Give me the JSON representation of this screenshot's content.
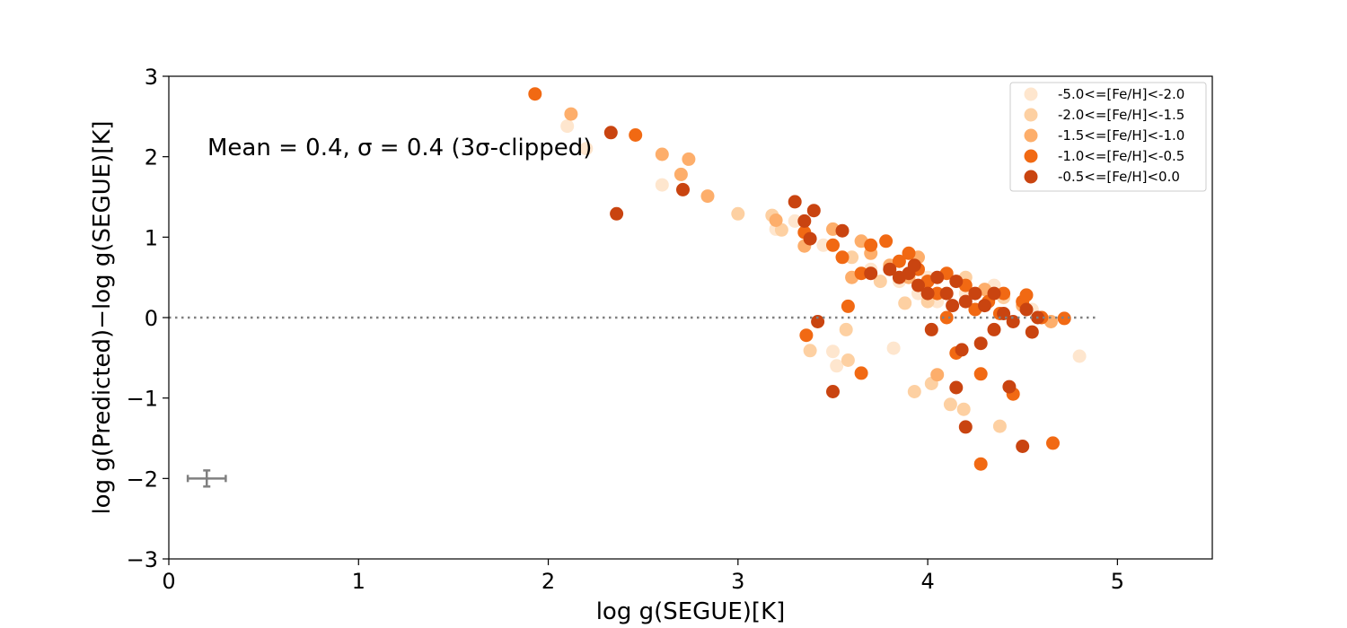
{
  "chart_data": {
    "type": "scatter",
    "xlabel": "log g(SEGUE)[K]",
    "ylabel": "log g(Predicted)−log g(SEGUE)[K]",
    "xlim": [
      0,
      5.5
    ],
    "ylim": [
      -3,
      3
    ],
    "x_ticks": [
      0,
      1,
      2,
      3,
      4,
      5
    ],
    "y_ticks": [
      -3,
      -2,
      -1,
      0,
      1,
      2,
      3
    ],
    "x_tick_labels": [
      "0",
      "1",
      "2",
      "3",
      "4",
      "5"
    ],
    "y_tick_labels": [
      "−3",
      "−2",
      "−1",
      "0",
      "1",
      "2",
      "3"
    ],
    "grid": false,
    "legend_position": "top-right",
    "annotation": "Mean = 0.4, σ = 0.4 (3σ-clipped)",
    "reference_line": {
      "y": 0,
      "x_range": [
        0,
        4.9
      ],
      "style": "dotted",
      "color": "#808080"
    },
    "error_bar": {
      "x": 0.2,
      "y": -2.0,
      "xerr": 0.1,
      "yerr": 0.1,
      "color": "#808080"
    },
    "series": [
      {
        "name": "-5.0<=[Fe/H]<-2.0",
        "color": "#fee6ce",
        "points": [
          [
            2.1,
            2.38
          ],
          [
            2.2,
            2.1
          ],
          [
            2.6,
            1.65
          ],
          [
            3.2,
            1.1
          ],
          [
            3.3,
            1.2
          ],
          [
            3.5,
            -0.42
          ],
          [
            3.52,
            -0.6
          ],
          [
            3.82,
            -0.38
          ],
          [
            3.95,
            0.3
          ],
          [
            4.05,
            0.2
          ],
          [
            4.2,
            0.3
          ],
          [
            4.35,
            0.4
          ],
          [
            4.55,
            0.1
          ],
          [
            4.8,
            -0.48
          ],
          [
            3.45,
            0.9
          ],
          [
            3.7,
            0.6
          ],
          [
            3.85,
            0.45
          ],
          [
            4.0,
            0.5
          ]
        ]
      },
      {
        "name": "-2.0<=[Fe/H]<-1.5",
        "color": "#fdd0a2",
        "points": [
          [
            3.0,
            1.29
          ],
          [
            3.18,
            1.27
          ],
          [
            3.23,
            1.09
          ],
          [
            3.38,
            -0.41
          ],
          [
            3.57,
            -0.15
          ],
          [
            3.58,
            -0.53
          ],
          [
            3.93,
            -0.92
          ],
          [
            4.02,
            -0.82
          ],
          [
            4.12,
            -1.08
          ],
          [
            4.19,
            -1.14
          ],
          [
            4.38,
            -1.35
          ],
          [
            3.6,
            0.75
          ],
          [
            3.75,
            0.45
          ],
          [
            3.88,
            0.18
          ],
          [
            4.0,
            0.2
          ],
          [
            4.2,
            0.5
          ],
          [
            4.4,
            0.25
          ],
          [
            4.6,
            0.0
          ]
        ]
      },
      {
        "name": "-1.5<=[Fe/H]<-1.0",
        "color": "#fdae6b",
        "points": [
          [
            2.12,
            2.53
          ],
          [
            2.6,
            2.03
          ],
          [
            2.7,
            1.78
          ],
          [
            2.74,
            1.97
          ],
          [
            2.84,
            1.51
          ],
          [
            3.2,
            1.21
          ],
          [
            3.35,
            0.89
          ],
          [
            3.5,
            1.1
          ],
          [
            3.6,
            0.5
          ],
          [
            3.7,
            0.8
          ],
          [
            3.8,
            0.65
          ],
          [
            3.9,
            0.5
          ],
          [
            4.05,
            -0.71
          ],
          [
            4.3,
            0.35
          ],
          [
            4.5,
            0.15
          ],
          [
            4.65,
            -0.05
          ],
          [
            3.65,
            0.95
          ],
          [
            3.95,
            0.75
          ]
        ]
      },
      {
        "name": "-1.0<=[Fe/H]<-0.5",
        "color": "#f16913",
        "points": [
          [
            1.93,
            2.78
          ],
          [
            2.46,
            2.27
          ],
          [
            3.35,
            1.06
          ],
          [
            3.36,
            -0.22
          ],
          [
            3.5,
            0.9
          ],
          [
            3.55,
            0.75
          ],
          [
            3.58,
            0.14
          ],
          [
            3.65,
            -0.69
          ],
          [
            3.7,
            0.9
          ],
          [
            3.78,
            0.95
          ],
          [
            3.85,
            0.7
          ],
          [
            3.9,
            0.8
          ],
          [
            3.95,
            0.6
          ],
          [
            4.0,
            0.45
          ],
          [
            4.05,
            0.3
          ],
          [
            4.1,
            0.55
          ],
          [
            4.15,
            -0.44
          ],
          [
            4.2,
            0.4
          ],
          [
            4.25,
            0.1
          ],
          [
            4.28,
            -0.7
          ],
          [
            4.28,
            -1.82
          ],
          [
            4.32,
            0.2
          ],
          [
            4.38,
            0.05
          ],
          [
            4.45,
            -0.95
          ],
          [
            4.5,
            0.2
          ],
          [
            4.52,
            0.28
          ],
          [
            4.6,
            0.0
          ],
          [
            4.66,
            -1.56
          ],
          [
            4.72,
            -0.01
          ],
          [
            4.1,
            0.0
          ],
          [
            4.4,
            0.3
          ],
          [
            3.65,
            0.55
          ]
        ]
      },
      {
        "name": "-0.5<=[Fe/H]<0.0",
        "color": "#c94410",
        "points": [
          [
            2.33,
            2.3
          ],
          [
            2.36,
            1.29
          ],
          [
            2.71,
            1.59
          ],
          [
            3.3,
            1.44
          ],
          [
            3.35,
            1.2
          ],
          [
            3.38,
            0.98
          ],
          [
            3.4,
            1.33
          ],
          [
            3.42,
            -0.05
          ],
          [
            3.5,
            -0.92
          ],
          [
            3.55,
            1.08
          ],
          [
            3.7,
            0.55
          ],
          [
            3.8,
            0.6
          ],
          [
            3.85,
            0.5
          ],
          [
            3.9,
            0.55
          ],
          [
            3.95,
            0.4
          ],
          [
            4.0,
            0.3
          ],
          [
            4.02,
            -0.15
          ],
          [
            4.05,
            0.5
          ],
          [
            4.1,
            0.3
          ],
          [
            4.13,
            0.15
          ],
          [
            4.15,
            -0.87
          ],
          [
            4.18,
            -0.4
          ],
          [
            4.2,
            0.2
          ],
          [
            4.2,
            -1.36
          ],
          [
            4.25,
            0.3
          ],
          [
            4.28,
            -0.32
          ],
          [
            4.3,
            0.15
          ],
          [
            4.35,
            -0.15
          ],
          [
            4.4,
            0.05
          ],
          [
            4.43,
            -0.86
          ],
          [
            4.45,
            -0.05
          ],
          [
            4.5,
            -1.6
          ],
          [
            4.52,
            0.1
          ],
          [
            4.55,
            -0.18
          ],
          [
            4.58,
            0.0
          ],
          [
            3.93,
            0.65
          ],
          [
            4.15,
            0.45
          ],
          [
            4.35,
            0.3
          ]
        ]
      }
    ]
  }
}
